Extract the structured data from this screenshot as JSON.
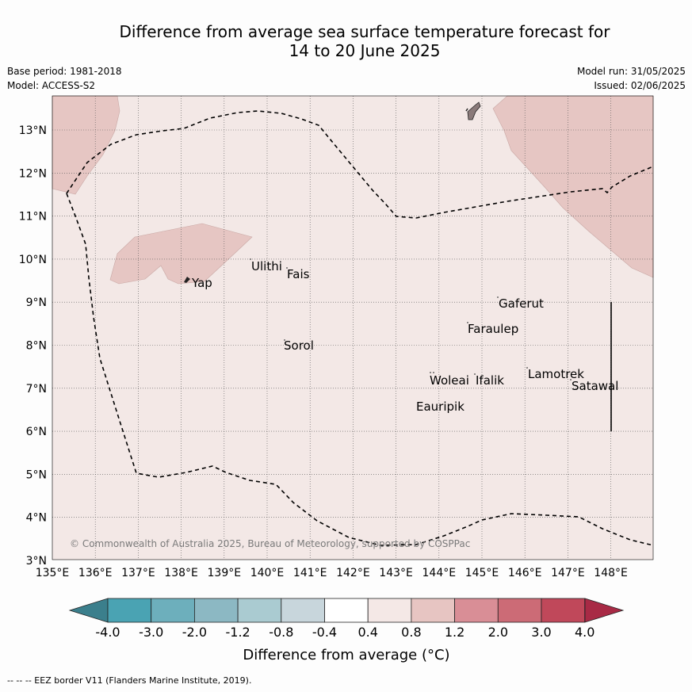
{
  "header": {
    "title_line1": "Difference from average sea surface temperature forecast for",
    "title_line2": "14 to 20 June 2025",
    "base_period": "Base period: 1981-2018",
    "model": "Model: ACCESS-S2",
    "model_run": "Model run: 31/05/2025",
    "issued": "Issued: 02/06/2025"
  },
  "map": {
    "lon_labels": [
      "135°E",
      "136°E",
      "137°E",
      "138°E",
      "139°E",
      "140°E",
      "141°E",
      "142°E",
      "143°E",
      "144°E",
      "145°E",
      "146°E",
      "147°E",
      "148°E"
    ],
    "lat_labels": [
      "13°N",
      "12°N",
      "11°N",
      "10°N",
      "9°N",
      "8°N",
      "7°N",
      "6°N",
      "5°N",
      "4°N",
      "3°N"
    ],
    "places": [
      "Ulithi",
      "Fais",
      "Yap",
      "Gaferut",
      "Faraulep",
      "Sorol",
      "Lamotrek",
      "Woleai",
      "Ifalik",
      "Satawal",
      "Eauripik"
    ],
    "copyright": "© Commonwealth of Australia 2025, Bureau of Meteorology, supported by COSPPac",
    "background_color": "#f3e8e6",
    "warm_area_color": "#e6c6c3",
    "land_color": "#8a7a7a"
  },
  "colorbar": {
    "title": "Difference from average (°C)",
    "tick_labels": [
      "-4.0",
      "-3.0",
      "-2.0",
      "-1.2",
      "-0.8",
      "-0.4",
      "0.4",
      "0.8",
      "1.2",
      "2.0",
      "3.0",
      "4.0"
    ],
    "colors": [
      "#3b7f8c",
      "#4aa3b3",
      "#6dafbc",
      "#8cb8c3",
      "#aacbd1",
      "#c8d6dc",
      "#ffffff",
      "#f4e8e6",
      "#e7c5c2",
      "#d98e96",
      "#cc6b76",
      "#c0485a",
      "#a82a45"
    ]
  },
  "footer": {
    "legend_line": "--  --  -- EEZ border V11 (Flanders Marine Institute, 2019)."
  }
}
